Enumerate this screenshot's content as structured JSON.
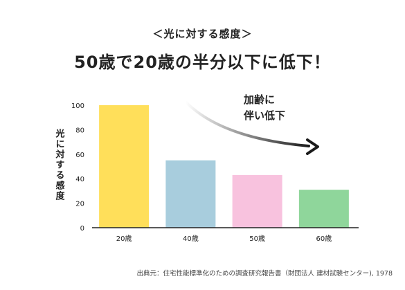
{
  "header": {
    "subtitle": "＜光に対する感度＞",
    "headline": "50歳で20歳の半分以下に低下！"
  },
  "annotation": {
    "line1": "加齢に",
    "line2": "伴い低下"
  },
  "source": "出典元：住宅性能標準化のための調査研究報告書（財団法人 建材試験センター), 1978",
  "colors": {
    "bar_20": "#ffdf5a",
    "bar_40": "#a8cddd",
    "bar_50": "#f8c2de",
    "bar_60": "#8fd69b",
    "arrow": "#1a1a1a",
    "axis": "#222222"
  },
  "chart_data": {
    "type": "bar",
    "title": "＜光に対する感度＞",
    "ylabel": "光に対する感度",
    "xlabel": "",
    "categories": [
      "20歳",
      "40歳",
      "50歳",
      "60歳"
    ],
    "values": [
      100,
      55,
      43,
      31
    ],
    "ylim": [
      0,
      100
    ],
    "yticks": [
      0,
      20,
      40,
      60,
      80,
      100
    ],
    "grid": false
  }
}
